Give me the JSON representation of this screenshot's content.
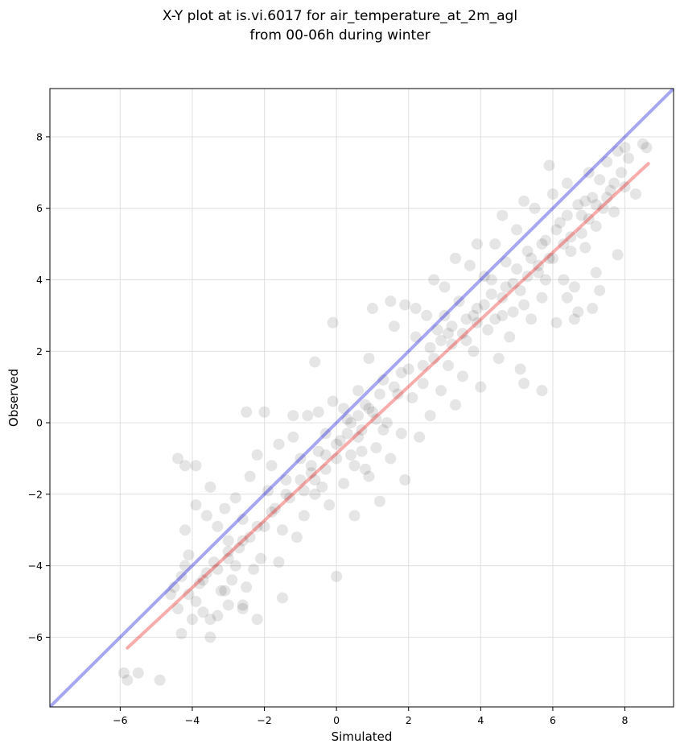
{
  "chart_data": {
    "type": "scatter",
    "title_line1": "X-Y plot at is.vi.6017 for air_temperature_at_2m_agl",
    "title_line2": "from 00-06h during winter",
    "xlabel": "Simulated",
    "ylabel": "Observed",
    "xlim": [
      -7.95,
      9.35
    ],
    "ylim": [
      -7.95,
      9.35
    ],
    "x_ticks": [
      -6,
      -4,
      -2,
      0,
      2,
      4,
      6,
      8
    ],
    "y_ticks": [
      -6,
      -4,
      -2,
      0,
      2,
      4,
      6,
      8
    ],
    "x_tick_labels": [
      "−6",
      "−4",
      "−2",
      "0",
      "2",
      "4",
      "6",
      "8"
    ],
    "y_tick_labels": [
      "−6",
      "−4",
      "−2",
      "0",
      "2",
      "4",
      "6",
      "8"
    ],
    "grid": true,
    "colors": {
      "points": "#000000",
      "identity_line": "#0000dd",
      "fit_line": "#ee1111"
    },
    "identity_line": {
      "x": [
        -7.95,
        9.35
      ],
      "y": [
        -7.95,
        9.35
      ]
    },
    "fit_line": {
      "x": [
        -5.8,
        8.65
      ],
      "y": [
        -6.3,
        7.25
      ]
    },
    "series": [
      {
        "points": [
          [
            -5.9,
            -7.0
          ],
          [
            -5.8,
            -7.2
          ],
          [
            -5.5,
            -7.0
          ],
          [
            -4.9,
            -7.2
          ],
          [
            -4.3,
            -5.9
          ],
          [
            -3.5,
            -6.0
          ],
          [
            -4.6,
            -4.8
          ],
          [
            -4.5,
            -4.6
          ],
          [
            -4.3,
            -4.3
          ],
          [
            -4.2,
            -4.0
          ],
          [
            -4.1,
            -3.7
          ],
          [
            -4.0,
            -5.5
          ],
          [
            -3.9,
            -5.0
          ],
          [
            -3.8,
            -4.5
          ],
          [
            -3.7,
            -5.3
          ],
          [
            -3.6,
            -4.2
          ],
          [
            -3.4,
            -3.9
          ],
          [
            -3.3,
            -5.4
          ],
          [
            -3.2,
            -4.7
          ],
          [
            -3.0,
            -5.1
          ],
          [
            -2.9,
            -4.4
          ],
          [
            -2.8,
            -4.0
          ],
          [
            -2.7,
            -3.5
          ],
          [
            -2.6,
            -5.2
          ],
          [
            -2.5,
            -4.6
          ],
          [
            -2.4,
            -3.2
          ],
          [
            -2.3,
            -4.1
          ],
          [
            -2.2,
            -5.5
          ],
          [
            -2.1,
            -3.8
          ],
          [
            -2.0,
            -2.9
          ],
          [
            -4.4,
            -1.0
          ],
          [
            -4.2,
            -1.2
          ],
          [
            -3.9,
            -1.2
          ],
          [
            -4.2,
            -3.0
          ],
          [
            -3.9,
            -2.3
          ],
          [
            -3.6,
            -2.6
          ],
          [
            -3.5,
            -1.8
          ],
          [
            -3.3,
            -2.9
          ],
          [
            -3.1,
            -2.4
          ],
          [
            -3.0,
            -3.3
          ],
          [
            -2.8,
            -2.1
          ],
          [
            -2.6,
            -2.7
          ],
          [
            -2.4,
            -1.5
          ],
          [
            -2.2,
            -0.9
          ],
          [
            -2.0,
            0.3
          ],
          [
            -1.9,
            -1.9
          ],
          [
            -1.8,
            -1.2
          ],
          [
            -1.7,
            -2.4
          ],
          [
            -1.6,
            -0.6
          ],
          [
            -1.5,
            -3.0
          ],
          [
            -1.4,
            -1.6
          ],
          [
            -1.3,
            -2.1
          ],
          [
            -1.2,
            -0.4
          ],
          [
            -1.1,
            -3.2
          ],
          [
            -1.0,
            -1.0
          ],
          [
            -0.9,
            -2.6
          ],
          [
            -0.8,
            0.2
          ],
          [
            -0.7,
            -1.4
          ],
          [
            -0.6,
            -2.0
          ],
          [
            -0.5,
            -0.8
          ],
          [
            -0.4,
            -1.8
          ],
          [
            -0.3,
            -0.3
          ],
          [
            -0.2,
            -2.3
          ],
          [
            -0.1,
            0.6
          ],
          [
            0.0,
            -1.0
          ],
          [
            0.1,
            -0.5
          ],
          [
            0.2,
            -1.7
          ],
          [
            0.3,
            0.1
          ],
          [
            0.4,
            -0.9
          ],
          [
            0.5,
            -2.6
          ],
          [
            0.6,
            0.9
          ],
          [
            0.7,
            -0.2
          ],
          [
            0.8,
            -1.3
          ],
          [
            0.9,
            1.8
          ],
          [
            1.0,
            0.3
          ],
          [
            1.1,
            -0.7
          ],
          [
            1.2,
            -2.2
          ],
          [
            1.3,
            1.2
          ],
          [
            1.4,
            0.0
          ],
          [
            1.5,
            -1.0
          ],
          [
            1.6,
            2.7
          ],
          [
            1.7,
            0.8
          ],
          [
            1.8,
            -0.3
          ],
          [
            1.9,
            -1.6
          ],
          [
            -2.5,
            0.3
          ],
          [
            -1.2,
            0.2
          ],
          [
            -0.5,
            0.3
          ],
          [
            -0.1,
            2.8
          ],
          [
            -0.6,
            1.7
          ],
          [
            1.0,
            3.2
          ],
          [
            0.0,
            -4.3
          ],
          [
            -1.6,
            -3.9
          ],
          [
            -2.6,
            -5.1
          ],
          [
            -3.1,
            -4.7
          ],
          [
            -1.5,
            -4.9
          ],
          [
            -3.0,
            -3.8
          ],
          [
            0.2,
            0.4
          ],
          [
            0.4,
            0.0
          ],
          [
            0.6,
            -0.4
          ],
          [
            0.8,
            0.5
          ],
          [
            1.1,
            0.1
          ],
          [
            1.3,
            -0.2
          ],
          [
            0.5,
            -1.2
          ],
          [
            0.7,
            -0.8
          ],
          [
            0.9,
            -1.5
          ],
          [
            -0.3,
            -1.3
          ],
          [
            -0.6,
            -1.6
          ],
          [
            -0.9,
            -1.9
          ],
          [
            2.0,
            1.5
          ],
          [
            2.1,
            0.7
          ],
          [
            2.2,
            2.4
          ],
          [
            2.3,
            -0.4
          ],
          [
            2.4,
            1.1
          ],
          [
            2.5,
            3.0
          ],
          [
            2.6,
            0.2
          ],
          [
            2.7,
            1.8
          ],
          [
            2.8,
            2.6
          ],
          [
            2.9,
            0.9
          ],
          [
            3.0,
            3.8
          ],
          [
            3.1,
            1.6
          ],
          [
            3.2,
            2.2
          ],
          [
            3.3,
            0.5
          ],
          [
            3.4,
            3.4
          ],
          [
            3.5,
            1.3
          ],
          [
            3.6,
            2.9
          ],
          [
            3.7,
            4.4
          ],
          [
            3.8,
            2.0
          ],
          [
            3.9,
            3.2
          ],
          [
            4.0,
            1.0
          ],
          [
            4.1,
            4.1
          ],
          [
            4.2,
            2.6
          ],
          [
            4.3,
            3.6
          ],
          [
            4.4,
            5.0
          ],
          [
            4.5,
            1.8
          ],
          [
            4.6,
            3.0
          ],
          [
            4.7,
            4.5
          ],
          [
            4.8,
            2.4
          ],
          [
            4.9,
            3.9
          ],
          [
            5.0,
            5.4
          ],
          [
            5.1,
            1.5
          ],
          [
            5.2,
            3.3
          ],
          [
            5.3,
            4.8
          ],
          [
            5.4,
            2.9
          ],
          [
            5.5,
            6.0
          ],
          [
            5.6,
            4.2
          ],
          [
            5.7,
            3.5
          ],
          [
            5.8,
            5.1
          ],
          [
            5.9,
            4.6
          ],
          [
            6.0,
            6.4
          ],
          [
            6.1,
            2.8
          ],
          [
            6.2,
            5.6
          ],
          [
            6.3,
            4.0
          ],
          [
            6.4,
            6.7
          ],
          [
            6.5,
            5.2
          ],
          [
            6.6,
            3.8
          ],
          [
            6.7,
            6.1
          ],
          [
            6.8,
            5.8
          ],
          [
            6.9,
            4.9
          ],
          [
            7.0,
            7.0
          ],
          [
            7.1,
            6.3
          ],
          [
            7.2,
            5.5
          ],
          [
            7.3,
            6.8
          ],
          [
            7.4,
            6.0
          ],
          [
            7.5,
            7.3
          ],
          [
            7.6,
            6.5
          ],
          [
            7.7,
            5.9
          ],
          [
            7.8,
            7.6
          ],
          [
            7.9,
            7.0
          ],
          [
            8.0,
            6.6
          ],
          [
            8.1,
            7.4
          ],
          [
            8.3,
            6.4
          ],
          [
            8.5,
            7.8
          ],
          [
            8.6,
            7.7
          ],
          [
            8.0,
            7.7
          ],
          [
            5.9,
            7.2
          ],
          [
            5.2,
            6.2
          ],
          [
            4.6,
            5.8
          ],
          [
            3.9,
            5.0
          ],
          [
            3.3,
            4.6
          ],
          [
            2.7,
            4.0
          ],
          [
            1.9,
            3.3
          ],
          [
            1.5,
            3.4
          ],
          [
            2.2,
            3.2
          ],
          [
            5.7,
            0.9
          ],
          [
            5.2,
            1.1
          ],
          [
            6.6,
            2.9
          ],
          [
            6.7,
            3.1
          ],
          [
            7.1,
            3.2
          ],
          [
            7.3,
            3.7
          ],
          [
            7.2,
            4.2
          ],
          [
            7.8,
            4.7
          ],
          [
            6.4,
            3.5
          ],
          [
            3.0,
            3.0
          ],
          [
            3.2,
            2.7
          ],
          [
            3.6,
            2.3
          ],
          [
            3.9,
            2.8
          ],
          [
            4.1,
            3.3
          ],
          [
            4.4,
            2.9
          ],
          [
            4.6,
            3.5
          ],
          [
            4.9,
            3.1
          ],
          [
            5.1,
            3.7
          ],
          [
            5.3,
            4.1
          ],
          [
            5.6,
            4.4
          ],
          [
            5.8,
            4.0
          ],
          [
            6.0,
            4.6
          ],
          [
            6.3,
            5.0
          ],
          [
            6.5,
            4.8
          ],
          [
            6.8,
            5.3
          ],
          [
            7.0,
            5.7
          ],
          [
            7.2,
            6.1
          ],
          [
            7.5,
            6.3
          ],
          [
            7.7,
            6.7
          ],
          [
            4.3,
            4.0
          ],
          [
            4.7,
            3.8
          ],
          [
            5.0,
            4.3
          ],
          [
            5.4,
            4.6
          ],
          [
            5.7,
            5.0
          ],
          [
            6.1,
            5.4
          ],
          [
            6.4,
            5.8
          ],
          [
            6.9,
            6.2
          ],
          [
            3.5,
            2.5
          ],
          [
            3.8,
            3.0
          ],
          [
            2.4,
            1.6
          ],
          [
            2.6,
            2.1
          ],
          [
            2.9,
            2.3
          ],
          [
            3.1,
            2.5
          ],
          [
            1.6,
            1.0
          ],
          [
            1.8,
            1.4
          ],
          [
            1.2,
            0.8
          ],
          [
            0.9,
            0.4
          ],
          [
            0.6,
            0.2
          ],
          [
            0.3,
            -0.3
          ],
          [
            0.0,
            -0.6
          ],
          [
            -0.3,
            -0.9
          ],
          [
            -0.7,
            -1.2
          ],
          [
            -1.0,
            -1.6
          ],
          [
            -1.4,
            -2.0
          ],
          [
            -1.8,
            -2.5
          ],
          [
            -2.2,
            -2.9
          ],
          [
            -2.6,
            -3.3
          ],
          [
            -3.0,
            -3.6
          ],
          [
            -3.3,
            -4.1
          ],
          [
            -3.7,
            -4.4
          ],
          [
            -4.1,
            -4.8
          ],
          [
            -4.4,
            -5.2
          ],
          [
            -3.5,
            -5.5
          ]
        ]
      }
    ]
  }
}
